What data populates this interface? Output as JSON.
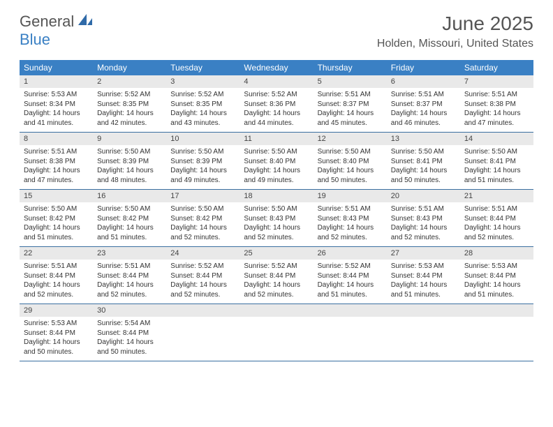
{
  "logo": {
    "word1": "General",
    "word2": "Blue"
  },
  "title": "June 2025",
  "location": "Holden, Missouri, United States",
  "colors": {
    "header_bg": "#3a80c4",
    "daynum_bg": "#e9e9e9",
    "rule": "#3a6fa0",
    "text": "#333333",
    "title_text": "#555555"
  },
  "day_names": [
    "Sunday",
    "Monday",
    "Tuesday",
    "Wednesday",
    "Thursday",
    "Friday",
    "Saturday"
  ],
  "first_weekday_offset": 0,
  "days": [
    {
      "n": 1,
      "sunrise": "5:53 AM",
      "sunset": "8:34 PM",
      "daylight": "14 hours and 41 minutes."
    },
    {
      "n": 2,
      "sunrise": "5:52 AM",
      "sunset": "8:35 PM",
      "daylight": "14 hours and 42 minutes."
    },
    {
      "n": 3,
      "sunrise": "5:52 AM",
      "sunset": "8:35 PM",
      "daylight": "14 hours and 43 minutes."
    },
    {
      "n": 4,
      "sunrise": "5:52 AM",
      "sunset": "8:36 PM",
      "daylight": "14 hours and 44 minutes."
    },
    {
      "n": 5,
      "sunrise": "5:51 AM",
      "sunset": "8:37 PM",
      "daylight": "14 hours and 45 minutes."
    },
    {
      "n": 6,
      "sunrise": "5:51 AM",
      "sunset": "8:37 PM",
      "daylight": "14 hours and 46 minutes."
    },
    {
      "n": 7,
      "sunrise": "5:51 AM",
      "sunset": "8:38 PM",
      "daylight": "14 hours and 47 minutes."
    },
    {
      "n": 8,
      "sunrise": "5:51 AM",
      "sunset": "8:38 PM",
      "daylight": "14 hours and 47 minutes."
    },
    {
      "n": 9,
      "sunrise": "5:50 AM",
      "sunset": "8:39 PM",
      "daylight": "14 hours and 48 minutes."
    },
    {
      "n": 10,
      "sunrise": "5:50 AM",
      "sunset": "8:39 PM",
      "daylight": "14 hours and 49 minutes."
    },
    {
      "n": 11,
      "sunrise": "5:50 AM",
      "sunset": "8:40 PM",
      "daylight": "14 hours and 49 minutes."
    },
    {
      "n": 12,
      "sunrise": "5:50 AM",
      "sunset": "8:40 PM",
      "daylight": "14 hours and 50 minutes."
    },
    {
      "n": 13,
      "sunrise": "5:50 AM",
      "sunset": "8:41 PM",
      "daylight": "14 hours and 50 minutes."
    },
    {
      "n": 14,
      "sunrise": "5:50 AM",
      "sunset": "8:41 PM",
      "daylight": "14 hours and 51 minutes."
    },
    {
      "n": 15,
      "sunrise": "5:50 AM",
      "sunset": "8:42 PM",
      "daylight": "14 hours and 51 minutes."
    },
    {
      "n": 16,
      "sunrise": "5:50 AM",
      "sunset": "8:42 PM",
      "daylight": "14 hours and 51 minutes."
    },
    {
      "n": 17,
      "sunrise": "5:50 AM",
      "sunset": "8:42 PM",
      "daylight": "14 hours and 52 minutes."
    },
    {
      "n": 18,
      "sunrise": "5:50 AM",
      "sunset": "8:43 PM",
      "daylight": "14 hours and 52 minutes."
    },
    {
      "n": 19,
      "sunrise": "5:51 AM",
      "sunset": "8:43 PM",
      "daylight": "14 hours and 52 minutes."
    },
    {
      "n": 20,
      "sunrise": "5:51 AM",
      "sunset": "8:43 PM",
      "daylight": "14 hours and 52 minutes."
    },
    {
      "n": 21,
      "sunrise": "5:51 AM",
      "sunset": "8:44 PM",
      "daylight": "14 hours and 52 minutes."
    },
    {
      "n": 22,
      "sunrise": "5:51 AM",
      "sunset": "8:44 PM",
      "daylight": "14 hours and 52 minutes."
    },
    {
      "n": 23,
      "sunrise": "5:51 AM",
      "sunset": "8:44 PM",
      "daylight": "14 hours and 52 minutes."
    },
    {
      "n": 24,
      "sunrise": "5:52 AM",
      "sunset": "8:44 PM",
      "daylight": "14 hours and 52 minutes."
    },
    {
      "n": 25,
      "sunrise": "5:52 AM",
      "sunset": "8:44 PM",
      "daylight": "14 hours and 52 minutes."
    },
    {
      "n": 26,
      "sunrise": "5:52 AM",
      "sunset": "8:44 PM",
      "daylight": "14 hours and 51 minutes."
    },
    {
      "n": 27,
      "sunrise": "5:53 AM",
      "sunset": "8:44 PM",
      "daylight": "14 hours and 51 minutes."
    },
    {
      "n": 28,
      "sunrise": "5:53 AM",
      "sunset": "8:44 PM",
      "daylight": "14 hours and 51 minutes."
    },
    {
      "n": 29,
      "sunrise": "5:53 AM",
      "sunset": "8:44 PM",
      "daylight": "14 hours and 50 minutes."
    },
    {
      "n": 30,
      "sunrise": "5:54 AM",
      "sunset": "8:44 PM",
      "daylight": "14 hours and 50 minutes."
    }
  ],
  "labels": {
    "sunrise_prefix": "Sunrise: ",
    "sunset_prefix": "Sunset: ",
    "daylight_prefix": "Daylight: "
  }
}
